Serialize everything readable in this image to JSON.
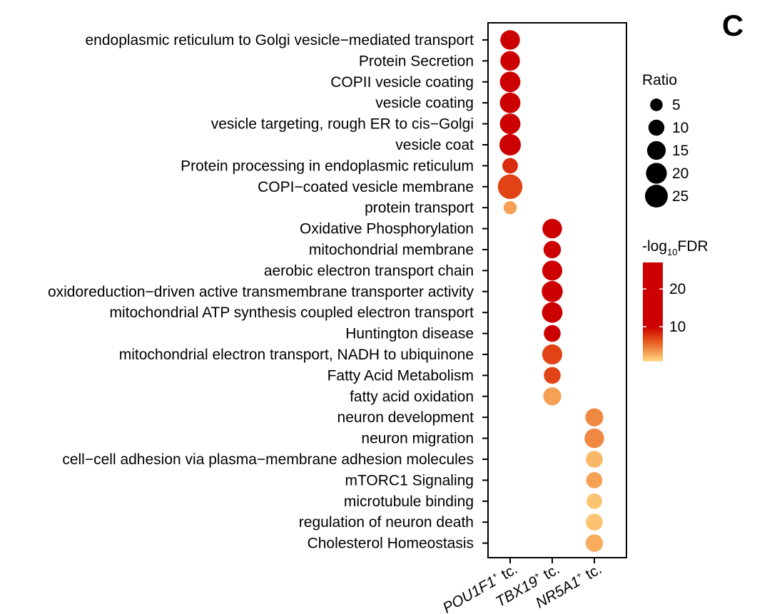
{
  "panel_label": "C",
  "chart_data": {
    "type": "scatter",
    "title": "",
    "xlabel": "",
    "ylabel": "",
    "groups": [
      {
        "name": "POU1F1",
        "superscript": "+",
        "suffix": " tc."
      },
      {
        "name": "TBX19",
        "superscript": "+",
        "suffix": " tc."
      },
      {
        "name": "NR5A1",
        "superscript": "+",
        "suffix": " tc."
      }
    ],
    "terms": [
      "endoplasmic reticulum to Golgi vesicle−mediated transport",
      "Protein Secretion",
      "COPII vesicle coating",
      "vesicle coating",
      "vesicle targeting, rough ER to cis−Golgi",
      "vesicle coat",
      "Protein processing in endoplasmic reticulum",
      "COPI−coated vesicle membrane",
      "protein transport",
      "Oxidative Phosphorylation",
      "mitochondrial membrane",
      "aerobic electron transport chain",
      "oxidoreduction−driven active transmembrane transporter activity",
      "mitochondrial ATP synthesis coupled electron transport",
      "Huntington disease",
      "mitochondrial electron transport, NADH to ubiquinone",
      "Fatty Acid Metabolism",
      "fatty acid oxidation",
      "neuron development",
      "neuron migration",
      "cell−cell adhesion via plasma−membrane adhesion molecules",
      "mTORC1 Signaling",
      "microtubule binding",
      "regulation of neuron death",
      "Cholesterol Homeostasis"
    ],
    "points": [
      {
        "term": 0,
        "group": 0,
        "ratio": 14,
        "neglog10fdr": 25
      },
      {
        "term": 1,
        "group": 0,
        "ratio": 14,
        "neglog10fdr": 25
      },
      {
        "term": 2,
        "group": 0,
        "ratio": 16,
        "neglog10fdr": 25
      },
      {
        "term": 3,
        "group": 0,
        "ratio": 16,
        "neglog10fdr": 25
      },
      {
        "term": 4,
        "group": 0,
        "ratio": 16,
        "neglog10fdr": 25
      },
      {
        "term": 5,
        "group": 0,
        "ratio": 18,
        "neglog10fdr": 25
      },
      {
        "term": 6,
        "group": 0,
        "ratio": 7,
        "neglog10fdr": 8
      },
      {
        "term": 7,
        "group": 0,
        "ratio": 26,
        "neglog10fdr": 7
      },
      {
        "term": 8,
        "group": 0,
        "ratio": 4,
        "neglog10fdr": 3
      },
      {
        "term": 9,
        "group": 1,
        "ratio": 14,
        "neglog10fdr": 24
      },
      {
        "term": 10,
        "group": 1,
        "ratio": 10,
        "neglog10fdr": 24
      },
      {
        "term": 11,
        "group": 1,
        "ratio": 15,
        "neglog10fdr": 24
      },
      {
        "term": 12,
        "group": 1,
        "ratio": 17,
        "neglog10fdr": 24
      },
      {
        "term": 13,
        "group": 1,
        "ratio": 16,
        "neglog10fdr": 24
      },
      {
        "term": 14,
        "group": 1,
        "ratio": 9,
        "neglog10fdr": 22
      },
      {
        "term": 15,
        "group": 1,
        "ratio": 15,
        "neglog10fdr": 7
      },
      {
        "term": 16,
        "group": 1,
        "ratio": 9,
        "neglog10fdr": 7
      },
      {
        "term": 17,
        "group": 1,
        "ratio": 11,
        "neglog10fdr": 3
      },
      {
        "term": 18,
        "group": 2,
        "ratio": 11,
        "neglog10fdr": 4
      },
      {
        "term": 19,
        "group": 2,
        "ratio": 14,
        "neglog10fdr": 4
      },
      {
        "term": 20,
        "group": 2,
        "ratio": 9,
        "neglog10fdr": 2
      },
      {
        "term": 21,
        "group": 2,
        "ratio": 8,
        "neglog10fdr": 3
      },
      {
        "term": 22,
        "group": 2,
        "ratio": 7,
        "neglog10fdr": 1.5
      },
      {
        "term": 23,
        "group": 2,
        "ratio": 9,
        "neglog10fdr": 1.5
      },
      {
        "term": 24,
        "group": 2,
        "ratio": 10,
        "neglog10fdr": 2.5
      }
    ],
    "size_legend": {
      "title": "Ratio",
      "values": [
        5,
        10,
        15,
        20,
        25
      ]
    },
    "color_legend": {
      "title_prefix": "-log",
      "title_subscript": "10",
      "title_suffix": "FDR",
      "range": [
        1,
        27
      ],
      "ticks": [
        10,
        20
      ],
      "colors": {
        "low": "#fdd07a",
        "mid": "#e85a1e",
        "high": "#cc0000"
      }
    }
  }
}
